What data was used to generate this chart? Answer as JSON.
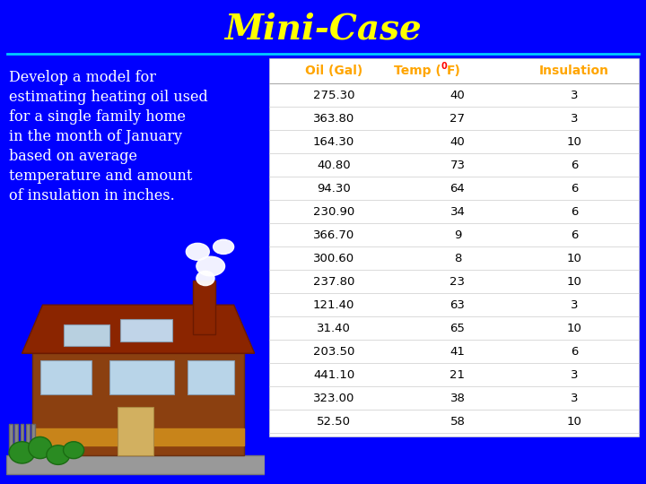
{
  "title": "Mini-Case",
  "title_color": "#FFFF00",
  "title_fontsize": 28,
  "bg_color": "#0000FF",
  "separator_color": "#00CCFF",
  "body_text_lines": [
    "Develop a model for",
    "estimating heating oil used",
    "for a single family home",
    "in the month of January",
    "based on average",
    "temperature and amount",
    "of insulation in inches."
  ],
  "body_text_color": "#FFFFFF",
  "body_fontsize": 11.5,
  "table_header_color": "#FFA500",
  "table_data": [
    [
      275.3,
      40,
      3
    ],
    [
      363.8,
      27,
      3
    ],
    [
      164.3,
      40,
      10
    ],
    [
      40.8,
      73,
      6
    ],
    [
      94.3,
      64,
      6
    ],
    [
      230.9,
      34,
      6
    ],
    [
      366.7,
      9,
      6
    ],
    [
      300.6,
      8,
      10
    ],
    [
      237.8,
      23,
      10
    ],
    [
      121.4,
      63,
      3
    ],
    [
      31.4,
      65,
      10
    ],
    [
      203.5,
      41,
      6
    ],
    [
      441.1,
      21,
      3
    ],
    [
      323.0,
      38,
      3
    ],
    [
      52.5,
      58,
      10
    ]
  ],
  "table_bg_color": "#FFFFFF",
  "table_text_color": "#000000",
  "table_fontsize": 9.5,
  "table_header_fontsize": 10
}
